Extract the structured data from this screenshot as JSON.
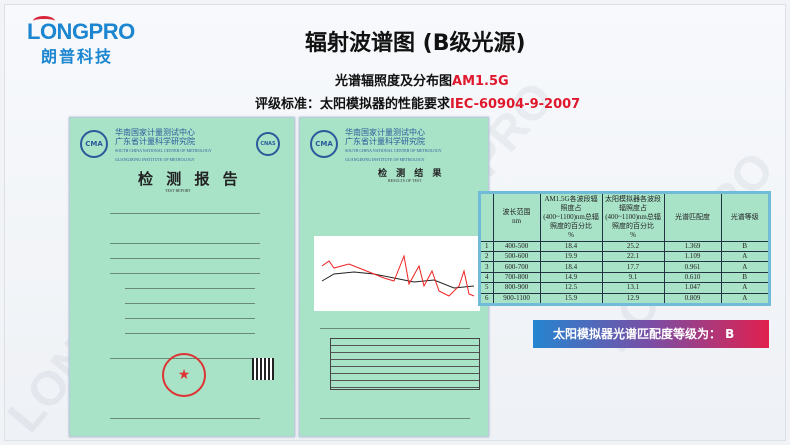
{
  "logo": {
    "en": "LONGPRO",
    "cn": "朗普科技"
  },
  "title": "辐射波谱图 (B级光源)",
  "subtitle1": {
    "text": "光谱辐照度及分布图",
    "highlight": "AM1.5G"
  },
  "subtitle2": {
    "text": "评级标准：太阳模拟器的性能要求",
    "highlight": "IEC-60904-9-2007"
  },
  "accent": "#e0182d",
  "brand": "#1d86d0",
  "watermark": "LONGPRO",
  "doc_header": {
    "cn1": "华南国家计量测试中心",
    "cn2": "广东省计量科学研究院",
    "en1": "SOUTH CHINA NATIONAL CENTER OF METROLOGY",
    "en2": "GUANGDONG INSTITUTE OF METROLOGY",
    "cma": "CMA",
    "cnas": "CNAS"
  },
  "doc1": {
    "title": "检 测 报 告",
    "subtitle": "TEST REPORT"
  },
  "doc2": {
    "title": "检 测 结 果",
    "subtitle": "RESULTS OF TEST"
  },
  "table": {
    "headers": [
      "",
      "波长范围\nnm",
      "AM1.5G各波段辐照度占(400~1100)nm总辐照度的百分比\n%",
      "太阳模拟器各波段辐照度占(400~1100)nm总辐照度的百分比\n%",
      "光谱匹配度",
      "光谱等级"
    ],
    "rows": [
      [
        "1",
        "400-500",
        "18.4",
        "25.2",
        "1.369",
        "B"
      ],
      [
        "2",
        "500-600",
        "19.9",
        "22.1",
        "1.109",
        "A"
      ],
      [
        "3",
        "600-700",
        "18.4",
        "17.7",
        "0.961",
        "A"
      ],
      [
        "4",
        "700-800",
        "14.9",
        "9.1",
        "0.610",
        "B"
      ],
      [
        "5",
        "800-900",
        "12.5",
        "13.1",
        "1.047",
        "A"
      ],
      [
        "6",
        "900-1100",
        "15.9",
        "12.9",
        "0.809",
        "A"
      ]
    ]
  },
  "banner": "太阳模拟器光谱匹配度等级为： B"
}
